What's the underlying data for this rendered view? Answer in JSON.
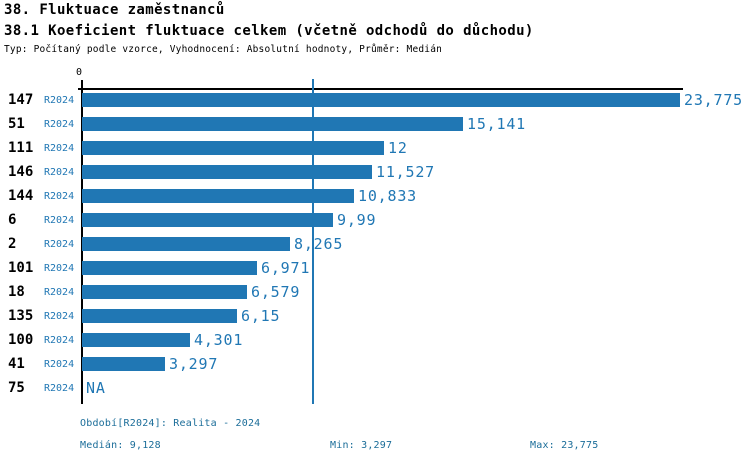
{
  "header": {
    "title": "38. Fluktuace zaměstnanců",
    "subtitle": "38.1 Koeficient fluktuace celkem (včetně odchodů do důchodu)",
    "meta": "Typ: Počítaný podle vzorce, Vyhodnocení: Absolutní hodnoty, Průměr: Medián"
  },
  "chart_data": {
    "type": "bar",
    "orientation": "horizontal",
    "title": "38.1 Koeficient fluktuace celkem (včetně odchodů do důchodu)",
    "categories": [
      "147",
      "51",
      "111",
      "146",
      "144",
      "6",
      "2",
      "101",
      "18",
      "135",
      "100",
      "41",
      "75"
    ],
    "series": [
      {
        "name": "R2024",
        "values": [
          23.775,
          15.141,
          12,
          11.527,
          10.833,
          9.99,
          8.265,
          6.971,
          6.579,
          6.15,
          4.301,
          3.297,
          null
        ],
        "value_labels": [
          "23,775",
          "15,141",
          "12",
          "11,527",
          "10,833",
          "9,99",
          "8,265",
          "6,971",
          "6,579",
          "6,15",
          "4,301",
          "3,297",
          "NA"
        ]
      }
    ],
    "xlim": [
      0,
      23.775
    ],
    "x_axis_zero_label": "0",
    "median_line_value": 9.128,
    "na_label": "NA",
    "grid": false,
    "legend_position": "none",
    "bar_color": "#2077b4"
  },
  "footer": {
    "period": "Období[R2024]: Realita - 2024",
    "median": "Medián: 9,128",
    "min": "Min: 3,297",
    "max": "Max: 23,775"
  },
  "colors": {
    "bar": "#2077b4",
    "footer_text": "#1b6d99",
    "axis": "#000000",
    "background": "#ffffff"
  }
}
